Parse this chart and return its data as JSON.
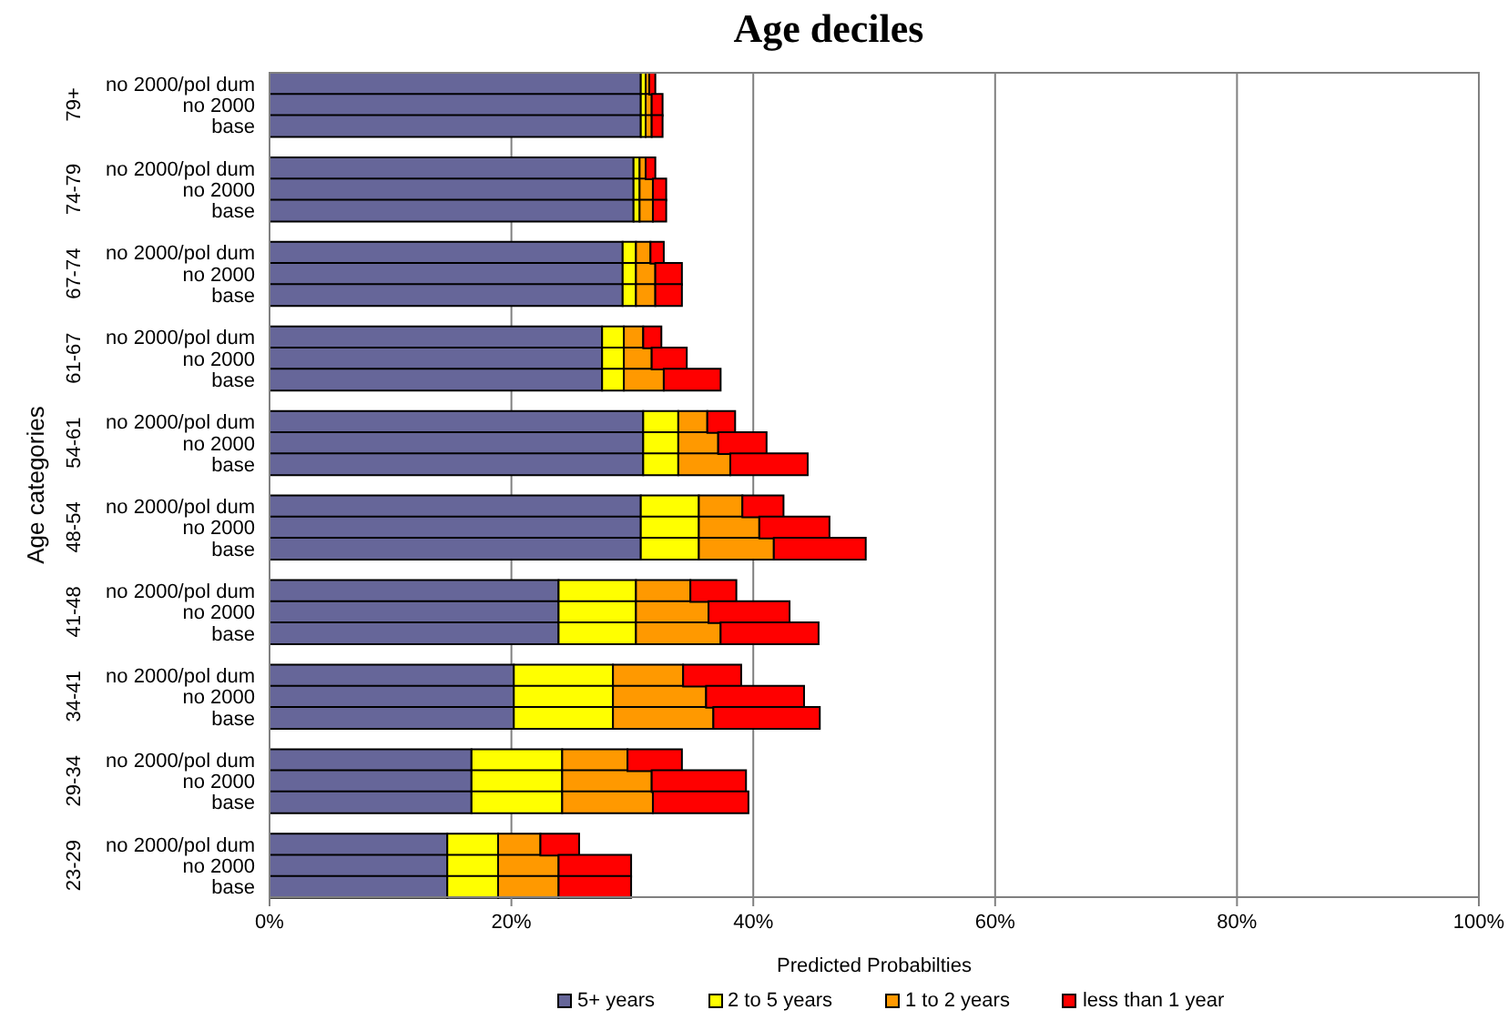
{
  "chart_data": {
    "type": "bar",
    "orientation": "horizontal",
    "stacked": true,
    "title": "Age deciles",
    "xlabel": "Predicted Probabilties",
    "ylabel": "Age categories",
    "annotations": [
      "79+",
      "74-79",
      "67-74",
      "61-67",
      "54-61",
      "48-54",
      "41-48",
      "34-41",
      "29-34",
      "23-29"
    ],
    "categories": [
      "no 2000/pol dum",
      "no 2000",
      "base",
      "no 2000/pol dum",
      "no 2000",
      "base",
      "no 2000/pol dum",
      "no 2000",
      "base",
      "no 2000/pol dum",
      "no 2000",
      "base",
      "no 2000/pol dum",
      "no 2000",
      "base",
      "no 2000/pol dum",
      "no 2000",
      "base",
      "no 2000/pol dum",
      "no 2000",
      "base",
      "no 2000/pol dum",
      "no 2000",
      "base",
      "no 2000/pol dum",
      "no 2000",
      "base",
      "no 2000/pol dum",
      "no 2000",
      "base"
    ],
    "series": [
      {
        "name": "5+ years",
        "color": "#666699",
        "values": [
          30.7,
          30.7,
          30.7,
          30.1,
          30.1,
          30.1,
          29.2,
          29.2,
          29.2,
          27.5,
          27.5,
          27.5,
          30.9,
          30.9,
          30.9,
          30.7,
          30.7,
          30.7,
          23.9,
          23.9,
          23.9,
          20.2,
          20.2,
          20.2,
          16.7,
          16.7,
          16.7,
          14.7,
          14.7,
          14.7
        ]
      },
      {
        "name": "2 to 5 years",
        "color": "#ffff00",
        "values": [
          0.4,
          0.4,
          0.4,
          0.5,
          0.5,
          0.5,
          1.1,
          1.1,
          1.1,
          1.8,
          1.8,
          1.8,
          2.9,
          2.9,
          2.9,
          4.8,
          4.8,
          4.8,
          6.4,
          6.4,
          6.4,
          8.2,
          8.2,
          8.2,
          7.5,
          7.5,
          7.5,
          4.2,
          4.2,
          4.2
        ]
      },
      {
        "name": "1 to 2 years",
        "color": "#ff9900",
        "values": [
          0.3,
          0.5,
          0.5,
          0.5,
          1.1,
          1.1,
          1.2,
          1.6,
          1.6,
          1.6,
          2.3,
          3.3,
          2.4,
          3.3,
          4.3,
          3.6,
          5.0,
          6.2,
          4.5,
          6.0,
          7.0,
          5.8,
          7.7,
          8.3,
          5.4,
          7.4,
          7.5,
          3.5,
          5.0,
          5.0
        ]
      },
      {
        "name": "less than 1 year",
        "color": "#ff0000",
        "values": [
          0.5,
          0.9,
          0.9,
          0.8,
          1.1,
          1.1,
          1.1,
          2.2,
          2.2,
          1.5,
          2.9,
          4.7,
          2.3,
          4.0,
          6.4,
          3.4,
          5.8,
          7.6,
          3.8,
          6.7,
          8.1,
          4.8,
          8.1,
          8.8,
          4.5,
          7.8,
          7.9,
          3.2,
          6.0,
          6.0
        ]
      }
    ],
    "xlim": [
      0,
      100
    ],
    "xticks": [
      {
        "value": 0,
        "label": "0%"
      },
      {
        "value": 20,
        "label": "20%"
      },
      {
        "value": 40,
        "label": "40%"
      },
      {
        "value": 60,
        "label": "60%"
      },
      {
        "value": 80,
        "label": "80%"
      },
      {
        "value": 100,
        "label": "100%"
      }
    ],
    "grid": "x",
    "legend": "bottom"
  }
}
